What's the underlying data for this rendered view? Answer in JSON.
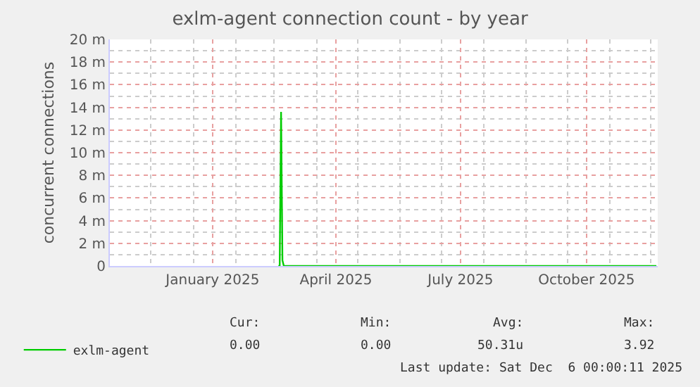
{
  "chart_data": {
    "type": "line",
    "title": "exlm-agent connection count - by year",
    "ylabel": "concurrent connections",
    "xlim": [
      "2024-11-01",
      "2025-12-06"
    ],
    "xticks": [
      {
        "value": "2025-01-15",
        "label": "January 2025"
      },
      {
        "value": "2025-04-15",
        "label": "April 2025"
      },
      {
        "value": "2025-07-15",
        "label": "July 2025"
      },
      {
        "value": "2025-10-15",
        "label": "October 2025"
      }
    ],
    "ylim": [
      0,
      20
    ],
    "yticks": [
      {
        "value": 0,
        "label": "0"
      },
      {
        "value": 2,
        "label": "2 m"
      },
      {
        "value": 4,
        "label": "4 m"
      },
      {
        "value": 6,
        "label": "6 m"
      },
      {
        "value": 8,
        "label": "8 m"
      },
      {
        "value": 10,
        "label": "10 m"
      },
      {
        "value": 12,
        "label": "12 m"
      },
      {
        "value": 14,
        "label": "14 m"
      },
      {
        "value": 16,
        "label": "16 m"
      },
      {
        "value": 18,
        "label": "18 m"
      },
      {
        "value": 20,
        "label": "20 m"
      }
    ],
    "series": [
      {
        "name": "exlm-agent",
        "color": "#00cc00",
        "x": [
          "2025-03-04",
          "2025-03-05",
          "2025-03-06",
          "2025-03-07",
          "2025-03-08",
          "2025-12-05"
        ],
        "values": [
          0,
          0,
          13.6,
          0.5,
          0,
          0
        ]
      }
    ],
    "grid": true,
    "legend": "bottom left",
    "marker": "none",
    "line_style": "solid",
    "annotations": [
      "Cur:",
      "Min:",
      "Avg:",
      "Max:",
      "0.00",
      "0.00",
      "50.31u",
      "3.92",
      "Last update: Sat Dec  6 00:00:11 2025"
    ]
  }
}
